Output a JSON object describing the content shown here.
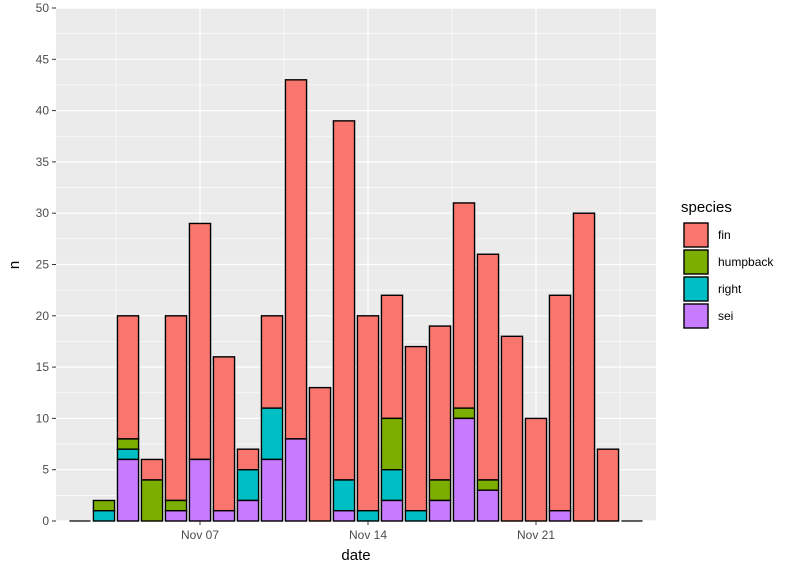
{
  "chart_data": {
    "type": "bar",
    "stacked": true,
    "xlabel": "date",
    "ylabel": "n",
    "ylim": [
      0,
      50
    ],
    "y_ticks": [
      0,
      5,
      10,
      15,
      20,
      25,
      30,
      35,
      40,
      45,
      50
    ],
    "x_range": [
      "2023-11-01",
      "2023-11-26"
    ],
    "x_ticks": [
      {
        "date": "2023-11-07",
        "label": "Nov 07"
      },
      {
        "date": "2023-11-14",
        "label": "Nov 14"
      },
      {
        "date": "2023-11-21",
        "label": "Nov 21"
      }
    ],
    "grid": true,
    "legend": {
      "title": "species",
      "position": "right"
    },
    "dates": [
      "2023-11-02",
      "2023-11-03",
      "2023-11-04",
      "2023-11-05",
      "2023-11-06",
      "2023-11-07",
      "2023-11-08",
      "2023-11-09",
      "2023-11-10",
      "2023-11-11",
      "2023-11-12",
      "2023-11-13",
      "2023-11-14",
      "2023-11-15",
      "2023-11-16",
      "2023-11-17",
      "2023-11-18",
      "2023-11-19",
      "2023-11-20",
      "2023-11-21",
      "2023-11-22",
      "2023-11-23",
      "2023-11-24",
      "2023-11-25"
    ],
    "series": [
      {
        "name": "fin",
        "color": "#F8766D",
        "values": [
          0,
          0,
          12,
          2,
          18,
          23,
          15,
          2,
          9,
          35,
          13,
          35,
          19,
          12,
          16,
          15,
          20,
          22,
          18,
          10,
          21,
          30,
          7,
          0
        ]
      },
      {
        "name": "humpback",
        "color": "#7CAE00",
        "values": [
          0,
          1,
          1,
          4,
          1,
          0,
          0,
          0,
          0,
          0,
          0,
          0,
          0,
          5,
          0,
          2,
          1,
          1,
          0,
          0,
          0,
          0,
          0,
          0
        ]
      },
      {
        "name": "right",
        "color": "#00BFC4",
        "values": [
          0,
          1,
          1,
          0,
          0,
          0,
          0,
          3,
          5,
          0,
          0,
          3,
          1,
          3,
          1,
          0,
          0,
          0,
          0,
          0,
          0,
          0,
          0,
          0
        ]
      },
      {
        "name": "sei",
        "color": "#C77CFF",
        "values": [
          0,
          0,
          6,
          0,
          1,
          6,
          1,
          2,
          6,
          8,
          0,
          1,
          0,
          2,
          0,
          2,
          10,
          3,
          0,
          0,
          1,
          0,
          0,
          0
        ]
      }
    ]
  }
}
